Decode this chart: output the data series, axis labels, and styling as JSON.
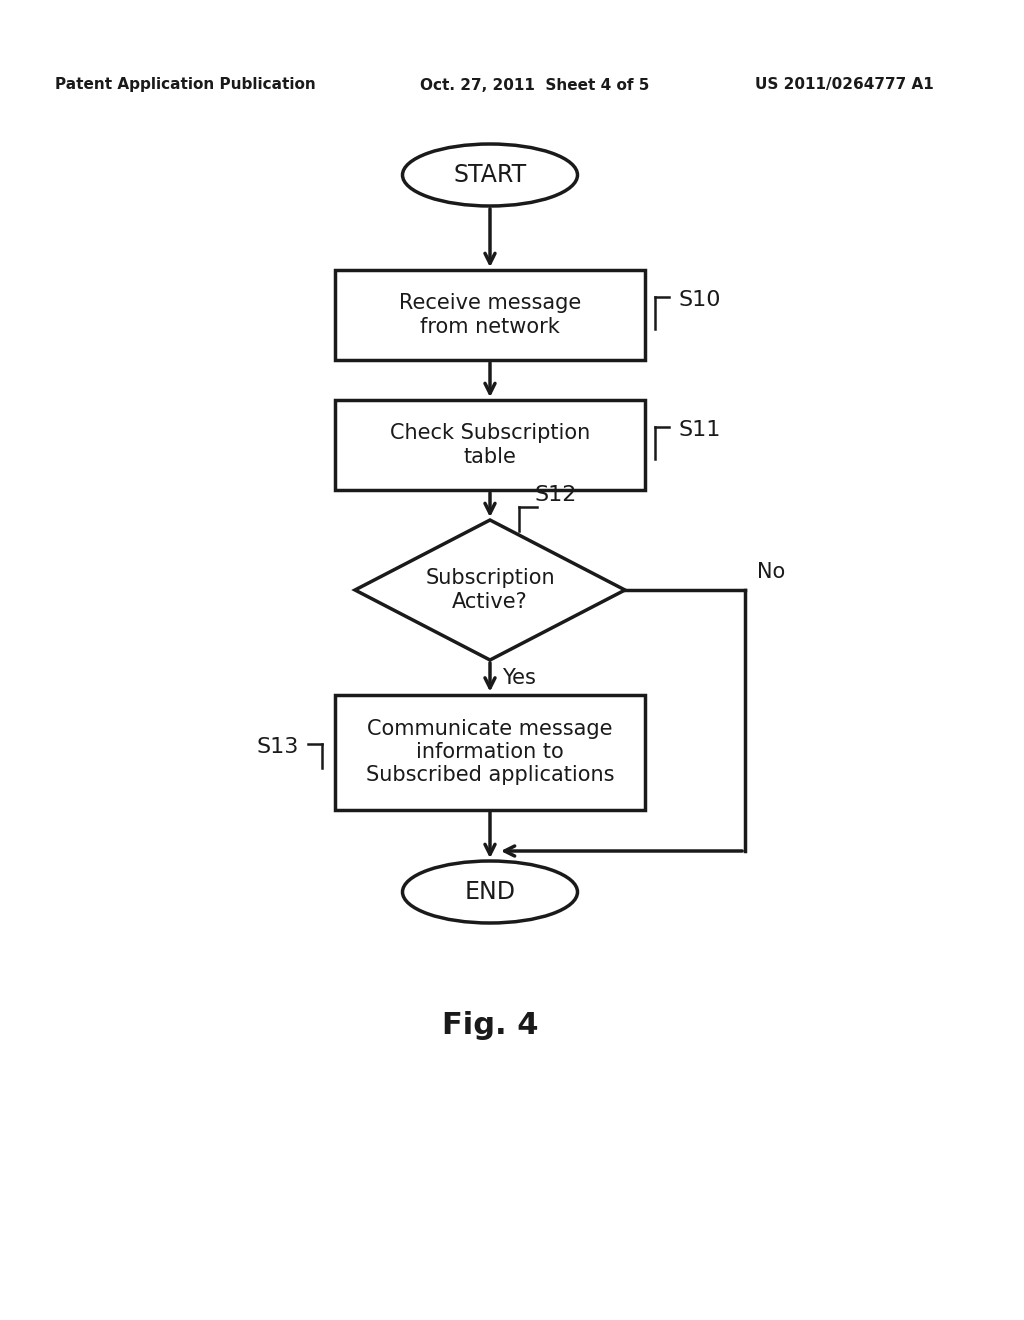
{
  "bg_color": "#ffffff",
  "header_left": "Patent Application Publication",
  "header_mid": "Oct. 27, 2011  Sheet 4 of 5",
  "header_right": "US 2011/0264777 A1",
  "fig_label": "Fig. 4",
  "start_label": "START",
  "end_label": "END",
  "box1_text": "Receive message\nfrom network",
  "box1_label": "S10",
  "box2_text": "Check Subscription\ntable",
  "box2_label": "S11",
  "diamond_text": "Subscription\nActive?",
  "diamond_label": "S12",
  "yes_label": "Yes",
  "no_label": "No",
  "box3_text": "Communicate message\ninformation to\nSubscribed applications",
  "box3_label": "S13",
  "font_color": "#1a1a1a",
  "box_edge_color": "#1a1a1a",
  "arrow_color": "#1a1a1a",
  "font_size_body": 15,
  "font_size_label": 16,
  "font_size_header": 11,
  "font_size_fig": 22
}
